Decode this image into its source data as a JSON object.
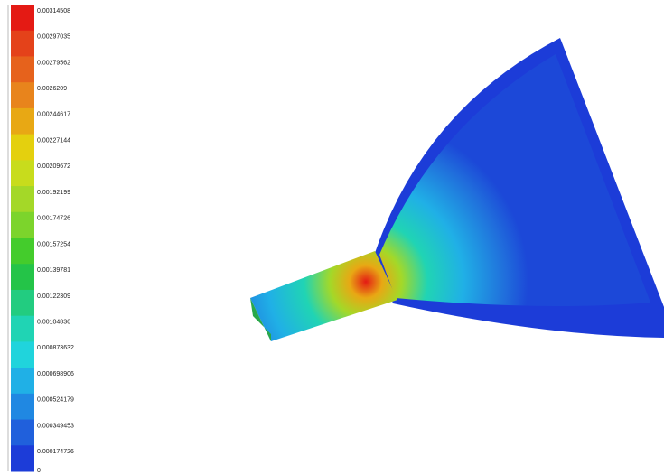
{
  "legend": {
    "labels": [
      "0.00314508",
      "0.00297035",
      "0.00279562",
      "0.0026209",
      "0.00244617",
      "0.00227144",
      "0.00209672",
      "0.00192199",
      "0.00174726",
      "0.00157254",
      "0.00139781",
      "0.00122309",
      "0.00104836",
      "0.000873632",
      "0.000698906",
      "0.000524179",
      "0.000349453",
      "0.000174726",
      "0"
    ],
    "colors": [
      "#e41a14",
      "#e4421a",
      "#e6621c",
      "#e8841c",
      "#e8a814",
      "#e4d00e",
      "#c8dc1c",
      "#a4d828",
      "#7cd42c",
      "#44cc2c",
      "#24c448",
      "#22cc80",
      "#20d4b4",
      "#20d4dc",
      "#20b0e6",
      "#2088e2",
      "#2060dc",
      "#1c3cd8"
    ]
  }
}
